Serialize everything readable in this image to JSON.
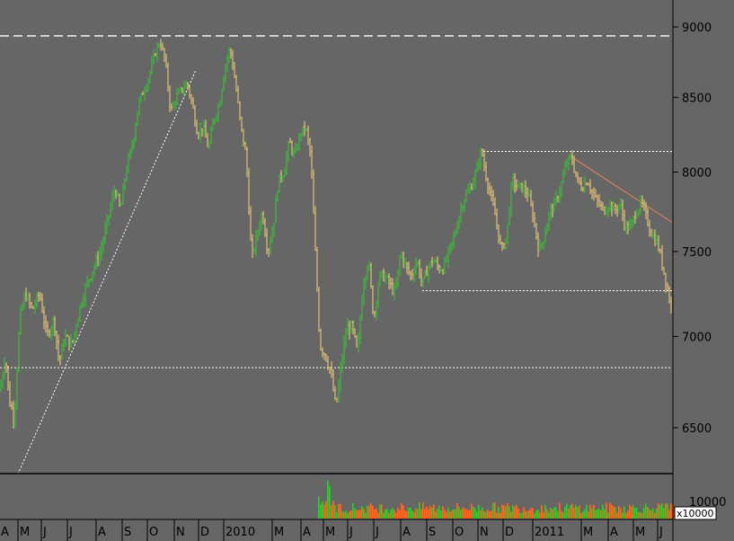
{
  "chart_data": {
    "type": "candlestick",
    "y_axis": {
      "ticks": [
        {
          "label": "9000",
          "value": 9000
        },
        {
          "label": "8500",
          "value": 8500
        },
        {
          "label": "8000",
          "value": 8000
        },
        {
          "label": "7500",
          "value": 7500
        },
        {
          "label": "7000",
          "value": 7000
        },
        {
          "label": "6500",
          "value": 6500
        }
      ],
      "ylim": [
        6200,
        9150
      ]
    },
    "volume_axis": {
      "tick_label": "10000",
      "unit_label": "x10000"
    },
    "x_axis": {
      "month_labels": [
        "A",
        "M",
        "J",
        "J",
        "A",
        "S",
        "O",
        "N",
        "D",
        "2010",
        "M",
        "A",
        "M",
        "J",
        "J",
        "A",
        "S",
        "O",
        "N",
        "D",
        "2011",
        "M",
        "A",
        "M",
        "J"
      ]
    },
    "price_path": [
      [
        0,
        6700
      ],
      [
        6,
        6900
      ],
      [
        10,
        6650
      ],
      [
        16,
        6550
      ],
      [
        22,
        7100
      ],
      [
        28,
        7250
      ],
      [
        36,
        7150
      ],
      [
        44,
        7250
      ],
      [
        52,
        7000
      ],
      [
        60,
        7100
      ],
      [
        66,
        6850
      ],
      [
        72,
        7000
      ],
      [
        80,
        6950
      ],
      [
        88,
        7150
      ],
      [
        96,
        7300
      ],
      [
        104,
        7400
      ],
      [
        112,
        7500
      ],
      [
        120,
        7700
      ],
      [
        128,
        7900
      ],
      [
        134,
        7750
      ],
      [
        140,
        8000
      ],
      [
        148,
        8200
      ],
      [
        154,
        8450
      ],
      [
        160,
        8550
      ],
      [
        166,
        8650
      ],
      [
        172,
        8800
      ],
      [
        178,
        8900
      ],
      [
        184,
        8750
      ],
      [
        190,
        8400
      ],
      [
        196,
        8500
      ],
      [
        202,
        8550
      ],
      [
        208,
        8600
      ],
      [
        214,
        8450
      ],
      [
        220,
        8250
      ],
      [
        226,
        8300
      ],
      [
        232,
        8150
      ],
      [
        238,
        8350
      ],
      [
        244,
        8450
      ],
      [
        250,
        8700
      ],
      [
        256,
        8850
      ],
      [
        262,
        8600
      ],
      [
        268,
        8300
      ],
      [
        274,
        8100
      ],
      [
        280,
        7450
      ],
      [
        286,
        7600
      ],
      [
        292,
        7750
      ],
      [
        298,
        7500
      ],
      [
        304,
        7650
      ],
      [
        310,
        7950
      ],
      [
        316,
        8000
      ],
      [
        322,
        8200
      ],
      [
        328,
        8100
      ],
      [
        334,
        8250
      ],
      [
        340,
        8300
      ],
      [
        346,
        8100
      ],
      [
        350,
        7600
      ],
      [
        356,
        6950
      ],
      [
        362,
        6900
      ],
      [
        368,
        6800
      ],
      [
        374,
        6600
      ],
      [
        380,
        6850
      ],
      [
        386,
        7050
      ],
      [
        392,
        7050
      ],
      [
        398,
        6900
      ],
      [
        404,
        7300
      ],
      [
        410,
        7450
      ],
      [
        416,
        7100
      ],
      [
        422,
        7350
      ],
      [
        428,
        7350
      ],
      [
        434,
        7300
      ],
      [
        440,
        7250
      ],
      [
        446,
        7500
      ],
      [
        452,
        7400
      ],
      [
        458,
        7350
      ],
      [
        464,
        7450
      ],
      [
        470,
        7300
      ],
      [
        476,
        7400
      ],
      [
        482,
        7450
      ],
      [
        488,
        7400
      ],
      [
        494,
        7400
      ],
      [
        500,
        7500
      ],
      [
        506,
        7600
      ],
      [
        512,
        7750
      ],
      [
        518,
        7850
      ],
      [
        524,
        7900
      ],
      [
        530,
        8000
      ],
      [
        536,
        8150
      ],
      [
        540,
        8000
      ],
      [
        546,
        7850
      ],
      [
        552,
        7700
      ],
      [
        558,
        7500
      ],
      [
        564,
        7600
      ],
      [
        570,
        7950
      ],
      [
        576,
        7900
      ],
      [
        582,
        7900
      ],
      [
        588,
        7850
      ],
      [
        594,
        7700
      ],
      [
        600,
        7500
      ],
      [
        606,
        7600
      ],
      [
        612,
        7750
      ],
      [
        618,
        7800
      ],
      [
        624,
        7900
      ],
      [
        630,
        8050
      ],
      [
        636,
        8100
      ],
      [
        642,
        7950
      ],
      [
        648,
        7900
      ],
      [
        654,
        7950
      ],
      [
        660,
        7850
      ],
      [
        666,
        7800
      ],
      [
        672,
        7750
      ],
      [
        678,
        7800
      ],
      [
        684,
        7750
      ],
      [
        690,
        7800
      ],
      [
        696,
        7650
      ],
      [
        702,
        7650
      ],
      [
        708,
        7750
      ],
      [
        714,
        7800
      ],
      [
        720,
        7700
      ],
      [
        726,
        7600
      ],
      [
        732,
        7550
      ],
      [
        738,
        7400
      ],
      [
        744,
        7250
      ],
      [
        748,
        7120
      ]
    ],
    "volume_bars": 200,
    "reference_lines": {
      "horizontal_dashed": [
        8935
      ],
      "horizontal_dotted": [
        {
          "value": 6825,
          "from": 0,
          "to": 748
        },
        {
          "value": 8135,
          "from": 538,
          "to": 748
        },
        {
          "value": 7265,
          "from": 470,
          "to": 748
        }
      ],
      "trend_lines": [
        {
          "from": [
            20,
            6260
          ],
          "to": [
            218,
            8690
          ],
          "style": "dotted"
        },
        {
          "from": [
            636,
            8100
          ],
          "to": [
            748,
            7680
          ],
          "style": "solid",
          "color": "#e8845c"
        }
      ]
    },
    "colors": {
      "background": "#666666",
      "up": "#33cc33",
      "down": "#f5d37a",
      "volume_down": "#ff6a2a",
      "volume_up": "#33cc33"
    }
  }
}
